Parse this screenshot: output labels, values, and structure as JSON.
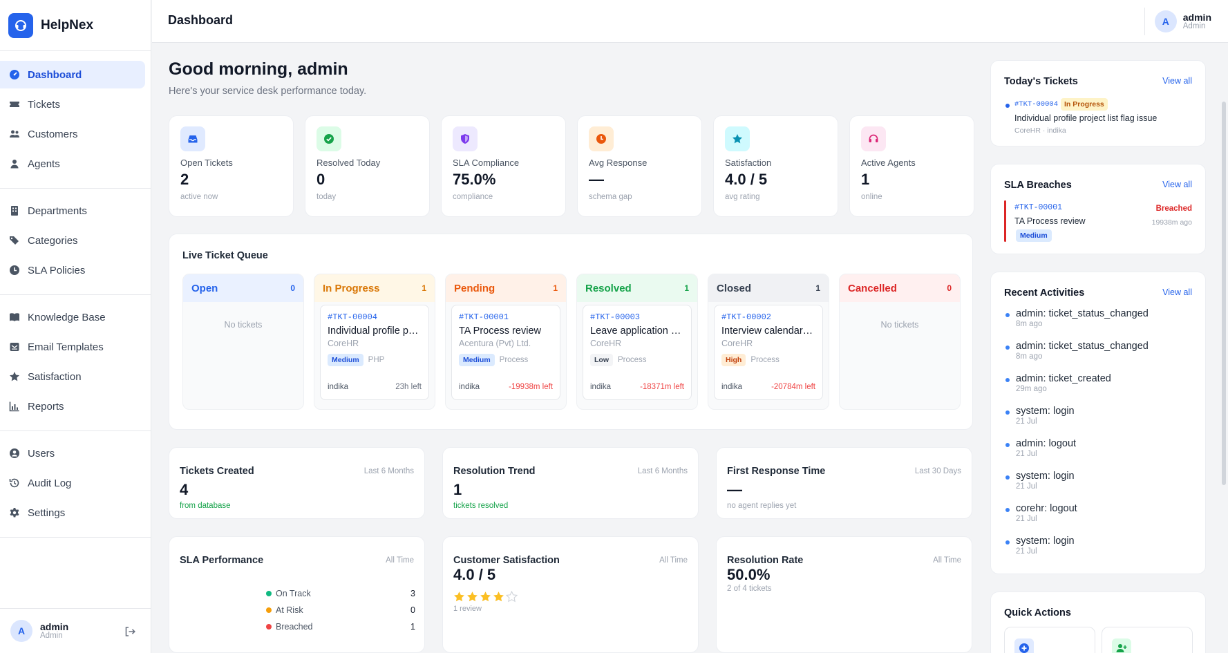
{
  "brand": {
    "name": "HelpNex"
  },
  "sidebar": {
    "groups": [
      {
        "items": [
          {
            "label": "Dashboard",
            "icon": "gauge-icon",
            "active": true
          },
          {
            "label": "Tickets",
            "icon": "ticket-icon"
          },
          {
            "label": "Customers",
            "icon": "users-icon"
          },
          {
            "label": "Agents",
            "icon": "user-icon"
          }
        ]
      },
      {
        "items": [
          {
            "label": "Departments",
            "icon": "building-icon"
          },
          {
            "label": "Categories",
            "icon": "tags-icon"
          },
          {
            "label": "SLA Policies",
            "icon": "clock-icon"
          }
        ]
      },
      {
        "items": [
          {
            "label": "Knowledge Base",
            "icon": "book-icon"
          },
          {
            "label": "Email Templates",
            "icon": "mail-icon"
          },
          {
            "label": "Satisfaction",
            "icon": "star-icon"
          },
          {
            "label": "Reports",
            "icon": "chart-icon"
          }
        ]
      },
      {
        "items": [
          {
            "label": "Users",
            "icon": "user-circle-icon"
          },
          {
            "label": "Audit Log",
            "icon": "history-icon"
          },
          {
            "label": "Settings",
            "icon": "gear-icon"
          }
        ]
      }
    ],
    "user": {
      "initial": "A",
      "name": "admin",
      "role": "Admin"
    }
  },
  "topbar": {
    "title": "Dashboard",
    "user": {
      "initial": "A",
      "name": "admin",
      "role": "Admin"
    }
  },
  "greeting": {
    "title": "Good morning, admin",
    "subtitle": "Here's your service desk performance today."
  },
  "stats": [
    {
      "label": "Open Tickets",
      "value": "2",
      "sub": "active now",
      "icon": "inbox-icon",
      "color": "#2563eb",
      "bg": "#e0eaff"
    },
    {
      "label": "Resolved Today",
      "value": "0",
      "sub": "today",
      "icon": "check-circle-icon",
      "color": "#16a34a",
      "bg": "#dcfce7"
    },
    {
      "label": "SLA Compliance",
      "value": "75.0%",
      "sub": "compliance",
      "icon": "shield-icon",
      "color": "#7c3aed",
      "bg": "#ede9fe"
    },
    {
      "label": "Avg Response",
      "value": "—",
      "sub": "schema gap",
      "icon": "clock-icon",
      "color": "#ea580c",
      "bg": "#ffedd5"
    },
    {
      "label": "Satisfaction",
      "value": "4.0 / 5",
      "sub": "avg rating",
      "icon": "star-icon",
      "color": "#0891b2",
      "bg": "#cffafe"
    },
    {
      "label": "Active Agents",
      "value": "1",
      "sub": "online",
      "icon": "headset-icon",
      "color": "#db2777",
      "bg": "#fce7f3"
    }
  ],
  "queue": {
    "title": "Live Ticket Queue",
    "empty_text": "No tickets",
    "columns": [
      {
        "name": "Open",
        "count": "0",
        "color": "#2563eb",
        "head_bg": "#eaf1ff",
        "tickets": []
      },
      {
        "name": "In Progress",
        "count": "1",
        "color": "#d97706",
        "head_bg": "#fff7e6",
        "tickets": [
          {
            "id": "#TKT-00004",
            "title": "Individual profile project list flag issue",
            "customer": "CoreHR",
            "priority": "Medium",
            "category": "PHP",
            "agent": "indika",
            "due": "23h left",
            "overdue": false
          }
        ]
      },
      {
        "name": "Pending",
        "count": "1",
        "color": "#ea580c",
        "head_bg": "#fff1e8",
        "tickets": [
          {
            "id": "#TKT-00001",
            "title": "TA Process review",
            "customer": "Acentura (Pvt) Ltd.",
            "priority": "Medium",
            "category": "Process",
            "agent": "indika",
            "due": "-19938m left",
            "overdue": true
          }
        ]
      },
      {
        "name": "Resolved",
        "count": "1",
        "color": "#16a34a",
        "head_bg": "#eafaf0",
        "tickets": [
          {
            "id": "#TKT-00003",
            "title": "Leave application approval issue",
            "customer": "CoreHR",
            "priority": "Low",
            "category": "Process",
            "agent": "indika",
            "due": "-18371m left",
            "overdue": true
          }
        ]
      },
      {
        "name": "Closed",
        "count": "1",
        "color": "#374151",
        "head_bg": "#f0f1f4",
        "tickets": [
          {
            "id": "#TKT-00002",
            "title": "Interview calendar sync issue",
            "customer": "CoreHR",
            "priority": "High",
            "category": "Process",
            "agent": "indika",
            "due": "-20784m left",
            "overdue": true
          }
        ]
      },
      {
        "name": "Cancelled",
        "count": "0",
        "color": "#dc2626",
        "head_bg": "#fff0f0",
        "tickets": []
      }
    ]
  },
  "metrics": {
    "tickets_created": {
      "title": "Tickets Created",
      "range": "Last 6 Months",
      "value": "4",
      "sub": "from database"
    },
    "resolution_trend": {
      "title": "Resolution Trend",
      "range": "Last 6 Months",
      "value": "1",
      "sub": "tickets resolved"
    },
    "first_response": {
      "title": "First Response Time",
      "range": "Last 30 Days",
      "value": "—",
      "sub": "no agent replies yet"
    },
    "sla_performance": {
      "title": "SLA Performance",
      "range": "All Time",
      "legend": [
        {
          "label": "On Track",
          "value": "3",
          "color": "#10b981"
        },
        {
          "label": "At Risk",
          "value": "0",
          "color": "#f59e0b"
        },
        {
          "label": "Breached",
          "value": "1",
          "color": "#ef4444"
        }
      ]
    },
    "satisfaction": {
      "title": "Customer Satisfaction",
      "range": "All Time",
      "value": "4.0 / 5",
      "rating": 4,
      "max": 5,
      "sub": "1 review"
    },
    "resolution_rate": {
      "title": "Resolution Rate",
      "range": "All Time",
      "value": "50.0%",
      "sub": "2 of 4 tickets"
    }
  },
  "todays_tickets": {
    "title": "Today's Tickets",
    "link": "View all",
    "item": {
      "id": "#TKT-00004",
      "status": "In Progress",
      "title": "Individual profile project list flag issue",
      "meta": "CoreHR · indika"
    }
  },
  "sla_breaches": {
    "title": "SLA Breaches",
    "link": "View all",
    "item": {
      "id": "#TKT-00001",
      "title": "TA Process review",
      "priority": "Medium",
      "status": "Breached",
      "time": "19938m ago"
    }
  },
  "activities": {
    "title": "Recent Activities",
    "link": "View all",
    "items": [
      {
        "text": "admin: ticket_status_changed",
        "time": "8m ago"
      },
      {
        "text": "admin: ticket_status_changed",
        "time": "8m ago"
      },
      {
        "text": "admin: ticket_created",
        "time": "29m ago"
      },
      {
        "text": "system: login",
        "time": "21 Jul"
      },
      {
        "text": "admin: logout",
        "time": "21 Jul"
      },
      {
        "text": "system: login",
        "time": "21 Jul"
      },
      {
        "text": "corehr: logout",
        "time": "21 Jul"
      },
      {
        "text": "system: login",
        "time": "21 Jul"
      }
    ]
  },
  "quick_actions": {
    "title": "Quick Actions"
  },
  "priority_styles": {
    "Medium": {
      "color": "#1d4ed8",
      "bg": "#dbeafe"
    },
    "Low": {
      "color": "#374151",
      "bg": "#f3f4f6"
    },
    "High": {
      "color": "#c2410c",
      "bg": "#ffedd5"
    }
  }
}
